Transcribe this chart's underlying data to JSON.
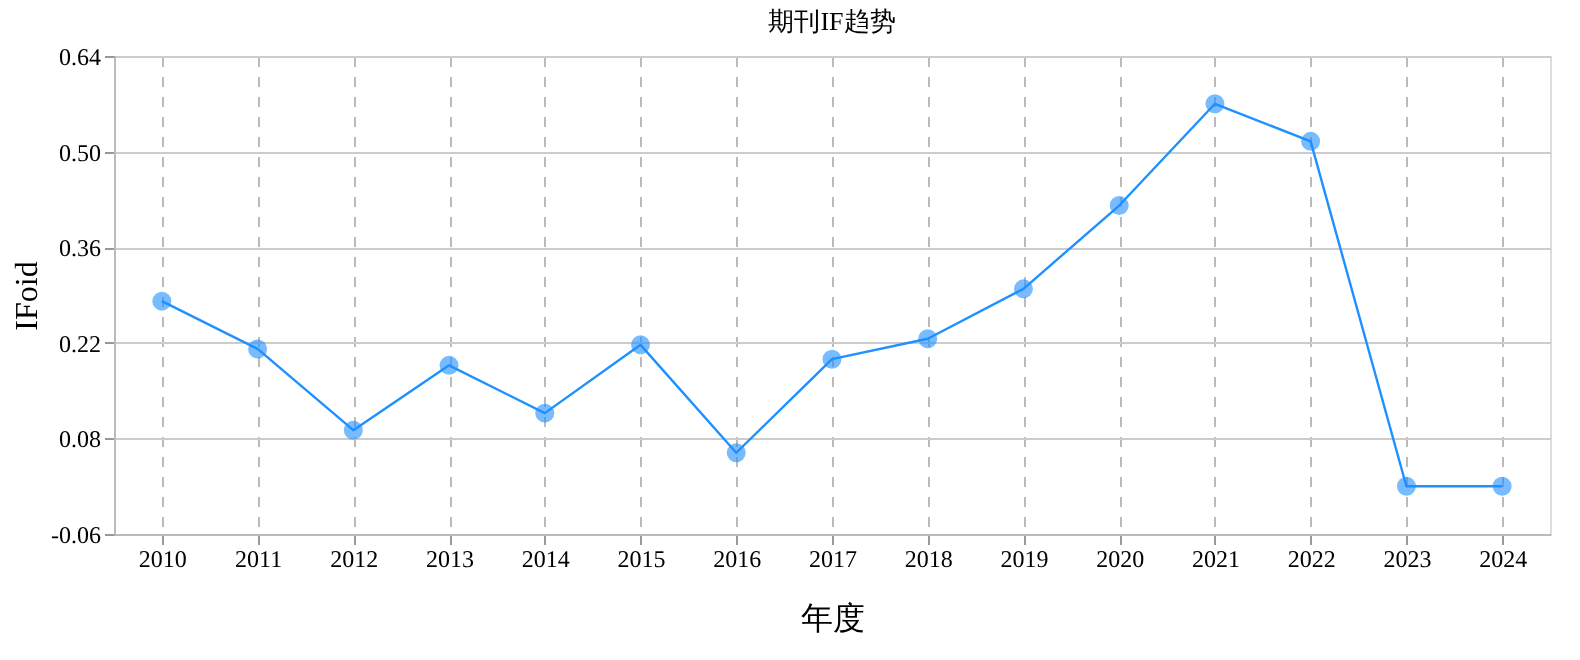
{
  "chart_data": {
    "type": "line",
    "title": "期刊IF趋势",
    "xlabel": "年度",
    "ylabel": "IFoid",
    "categories": [
      "2010",
      "2011",
      "2012",
      "2013",
      "2014",
      "2015",
      "2016",
      "2017",
      "2018",
      "2019",
      "2020",
      "2021",
      "2022",
      "2023",
      "2024"
    ],
    "series": [
      {
        "color": "#1e90ff",
        "values": [
          0.281,
          0.211,
          0.092,
          0.187,
          0.117,
          0.217,
          0.059,
          0.196,
          0.226,
          0.299,
          0.421,
          0.57,
          0.515,
          0.01,
          0.01
        ]
      }
    ],
    "ylim": [
      -0.06,
      0.64
    ],
    "yticks": [
      -0.06,
      0.08,
      0.22,
      0.36,
      {
        "value": 0.5,
        "label": "0.50"
      },
      0.64
    ],
    "grid": true,
    "marker": "circle",
    "line_style": "solid",
    "legend": false
  }
}
